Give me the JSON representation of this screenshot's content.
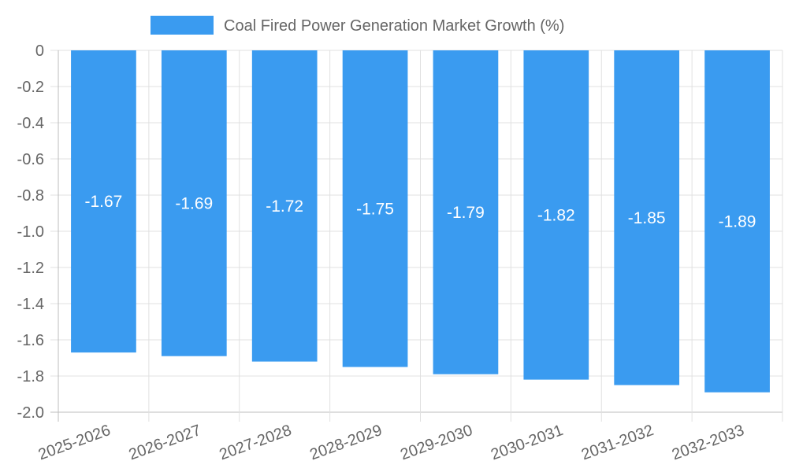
{
  "chart_data": {
    "type": "bar",
    "categories": [
      "2025-2026",
      "2026-2027",
      "2027-2028",
      "2028-2029",
      "2029-2030",
      "2030-2031",
      "2031-2032",
      "2032-2033"
    ],
    "series": [
      {
        "name": "Coal Fired Power Generation Market Growth (%)",
        "values": [
          -1.67,
          -1.69,
          -1.72,
          -1.75,
          -1.79,
          -1.82,
          -1.85,
          -1.89
        ],
        "color": "#3a9bf0"
      }
    ],
    "data_labels": [
      "-1.67",
      "-1.69",
      "-1.72",
      "-1.75",
      "-1.79",
      "-1.82",
      "-1.85",
      "-1.89"
    ],
    "y_ticks": [
      "0",
      "-0.2",
      "-0.4",
      "-0.6",
      "-0.8",
      "-1.0",
      "-1.2",
      "-1.4",
      "-1.6",
      "-1.8",
      "-2.0"
    ],
    "ylim": [
      -2.0,
      0
    ],
    "title": "",
    "xlabel": "",
    "ylabel": "",
    "grid": true,
    "legend_position": "top-center",
    "colors": {
      "grid": "#e0e0e0",
      "axis": "#bdbdbd",
      "text": "#666666",
      "bar": "#3a9bf0",
      "bar_label": "#ffffff"
    }
  }
}
